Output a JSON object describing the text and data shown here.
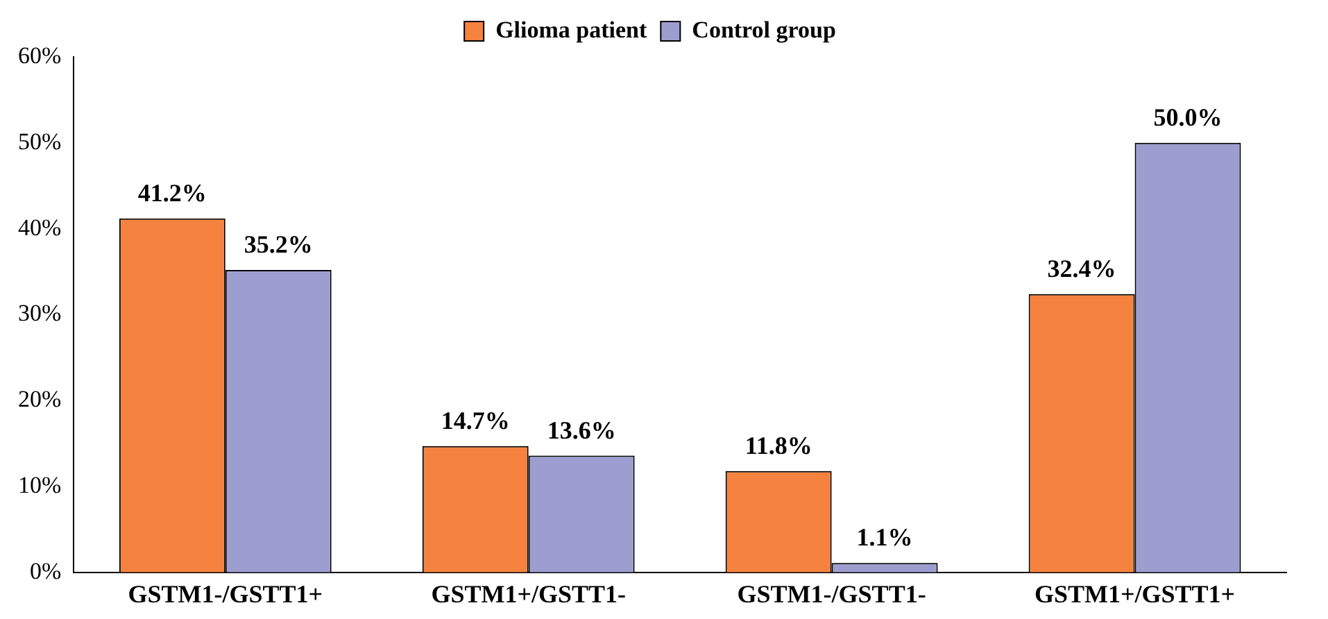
{
  "chart_data": {
    "type": "bar",
    "categories": [
      "GSTM1-/GSTT1+",
      "GSTM1+/GSTT1-",
      "GSTM1-/GSTT1-",
      "GSTM1+/GSTT1+"
    ],
    "series": [
      {
        "name": "Glioma patient",
        "color": "#f5823f",
        "values": [
          41.2,
          14.7,
          11.8,
          32.4
        ],
        "value_labels": [
          "41.2%",
          "14.7%",
          "11.8%",
          "32.4%"
        ]
      },
      {
        "name": "Control group",
        "color": "#9d9dd0",
        "values": [
          35.2,
          13.6,
          1.1,
          50.0
        ],
        "value_labels": [
          "35.2%",
          "13.6%",
          "1.1%",
          "50.0%"
        ]
      }
    ],
    "ylim": [
      0,
      60
    ],
    "yticks": [
      {
        "value": 0,
        "label": "0%"
      },
      {
        "value": 10,
        "label": "10%"
      },
      {
        "value": 20,
        "label": "20%"
      },
      {
        "value": 30,
        "label": "30%"
      },
      {
        "value": 40,
        "label": "40%"
      },
      {
        "value": 50,
        "label": "50%"
      },
      {
        "value": 60,
        "label": "60%"
      }
    ],
    "grid": false,
    "legend": "top"
  }
}
